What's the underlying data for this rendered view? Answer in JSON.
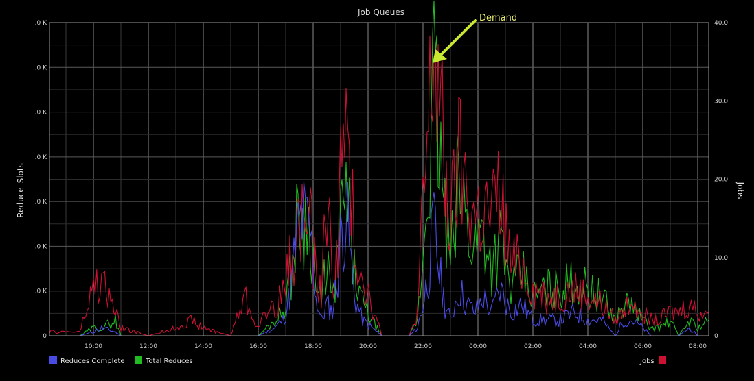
{
  "chart_data": {
    "type": "line",
    "title": "Job Queues",
    "ylabel_left": "Reduce_Slots",
    "ylabel_right": "Jobs",
    "x_ticks": [
      "10:00",
      "12:00",
      "14:00",
      "16:00",
      "18:00",
      "20:00",
      "22:00",
      "00:00",
      "02:00",
      "04:00",
      "06:00",
      "08:00"
    ],
    "x_start_hour": 8.4,
    "x_end_hour": 32.4,
    "y_left_ticks": [
      "0",
      ".0 K",
      ".0 K",
      ".0 K",
      ".0 K",
      ".0 K",
      ".0 K",
      ".0 K"
    ],
    "y_right_ticks": [
      "0",
      "10.0",
      "20.0",
      "30.0",
      "40.0"
    ],
    "y_right_range": [
      0,
      40
    ],
    "annotation": {
      "text": "Demand",
      "x": 22.3,
      "y": 35,
      "color": "#c8e832"
    },
    "colors": {
      "reduces_complete": "#4a4ae6",
      "total_reduces": "#22bb22",
      "jobs": "#cc1133"
    },
    "series": [
      {
        "name": "Reduces Complete",
        "x": [
          8.4,
          9.5,
          10.0,
          10.3,
          10.8,
          11.0,
          12.0,
          13.0,
          13.5,
          14.0,
          15.0,
          15.5,
          16.0,
          16.3,
          16.6,
          16.9,
          17.0,
          17.2,
          17.4,
          17.6,
          17.9,
          18.1,
          18.3,
          18.5,
          18.7,
          18.9,
          19.0,
          19.2,
          19.5,
          19.8,
          20.5,
          21.0,
          21.5,
          21.8,
          22.0,
          22.2,
          22.4,
          22.6,
          22.8,
          23.0,
          23.3,
          23.6,
          23.9,
          24.2,
          24.5,
          24.8,
          25.2,
          25.6,
          26.0,
          26.5,
          27.0,
          27.5,
          28.0,
          28.5,
          29.0,
          29.3,
          29.6,
          30.0,
          30.3,
          30.6,
          31.0,
          31.3,
          31.7,
          32.0,
          32.4
        ],
        "y": [
          0,
          0,
          0.5,
          1,
          0.5,
          0,
          0,
          0,
          0,
          0,
          0,
          0,
          0,
          0.5,
          1,
          2,
          3,
          6,
          13,
          15,
          13,
          5,
          2,
          4,
          3,
          8,
          12,
          16,
          5,
          2,
          0,
          0,
          0,
          1,
          4,
          8,
          14,
          8,
          4,
          2,
          6,
          4,
          3,
          5,
          3,
          6,
          3,
          4,
          2,
          2,
          2,
          3,
          2,
          2,
          0,
          2,
          2,
          1,
          0,
          0,
          0,
          0,
          1,
          0,
          0
        ]
      },
      {
        "name": "Total Reduces",
        "x": [
          8.4,
          9.5,
          10.0,
          10.3,
          10.8,
          11.0,
          12.0,
          13.0,
          13.5,
          14.0,
          15.0,
          15.5,
          16.0,
          16.3,
          16.6,
          16.9,
          17.0,
          17.2,
          17.4,
          17.6,
          17.9,
          18.1,
          18.3,
          18.5,
          18.7,
          18.9,
          19.0,
          19.2,
          19.5,
          19.8,
          20.5,
          21.0,
          21.5,
          21.8,
          22.0,
          22.2,
          22.4,
          22.6,
          22.8,
          23.0,
          23.3,
          23.6,
          23.9,
          24.2,
          24.5,
          24.8,
          25.2,
          25.6,
          26.0,
          26.5,
          27.0,
          27.5,
          28.0,
          28.5,
          29.0,
          29.3,
          29.6,
          30.0,
          30.3,
          30.6,
          31.0,
          31.3,
          31.7,
          32.0,
          32.4
        ],
        "y": [
          0,
          0,
          1,
          1,
          2,
          0,
          0,
          0,
          0,
          0,
          0,
          0,
          0,
          1,
          2,
          3,
          5,
          8,
          14,
          15,
          14,
          6,
          4,
          10,
          4,
          10,
          14,
          18,
          8,
          4,
          0,
          0,
          0,
          2,
          10,
          22,
          32,
          24,
          15,
          9,
          20,
          14,
          12,
          14,
          9,
          12,
          6,
          8,
          5,
          6,
          6,
          7,
          6,
          5,
          2,
          4,
          4,
          2,
          1,
          1,
          2,
          0,
          2,
          1,
          2
        ]
      },
      {
        "name": "Jobs",
        "x": [
          8.4,
          9.5,
          10.0,
          10.3,
          10.8,
          11.0,
          12.0,
          13.0,
          13.5,
          14.0,
          15.0,
          15.5,
          16.0,
          16.3,
          16.6,
          16.9,
          17.0,
          17.2,
          17.4,
          17.6,
          17.9,
          18.1,
          18.3,
          18.5,
          18.7,
          18.9,
          19.0,
          19.2,
          19.5,
          19.8,
          20.5,
          21.0,
          21.5,
          21.8,
          22.0,
          22.2,
          22.4,
          22.6,
          22.8,
          23.0,
          23.3,
          23.6,
          23.9,
          24.2,
          24.5,
          24.8,
          25.2,
          25.6,
          26.0,
          26.5,
          27.0,
          27.5,
          28.0,
          28.5,
          29.0,
          29.3,
          29.6,
          30.0,
          30.3,
          30.6,
          31.0,
          31.3,
          31.7,
          32.0,
          32.4
        ],
        "y": [
          0.5,
          0.5,
          6,
          7,
          3,
          1,
          0,
          1,
          2,
          1,
          0,
          5,
          1,
          3,
          4,
          5,
          7,
          10,
          13,
          15,
          14,
          7,
          6,
          18,
          7,
          12,
          20,
          26,
          12,
          8,
          0,
          0,
          0,
          3,
          16,
          26,
          37,
          30,
          20,
          14,
          22,
          18,
          15,
          16,
          15,
          18,
          9,
          9,
          6,
          5,
          5,
          6,
          5,
          4,
          2,
          3,
          5,
          3,
          2,
          2,
          3,
          3,
          4,
          3,
          3
        ]
      }
    ]
  },
  "legend": {
    "reduces_complete_label": "Reduces Complete",
    "total_reduces_label": "Total Reduces",
    "jobs_label": "Jobs"
  }
}
